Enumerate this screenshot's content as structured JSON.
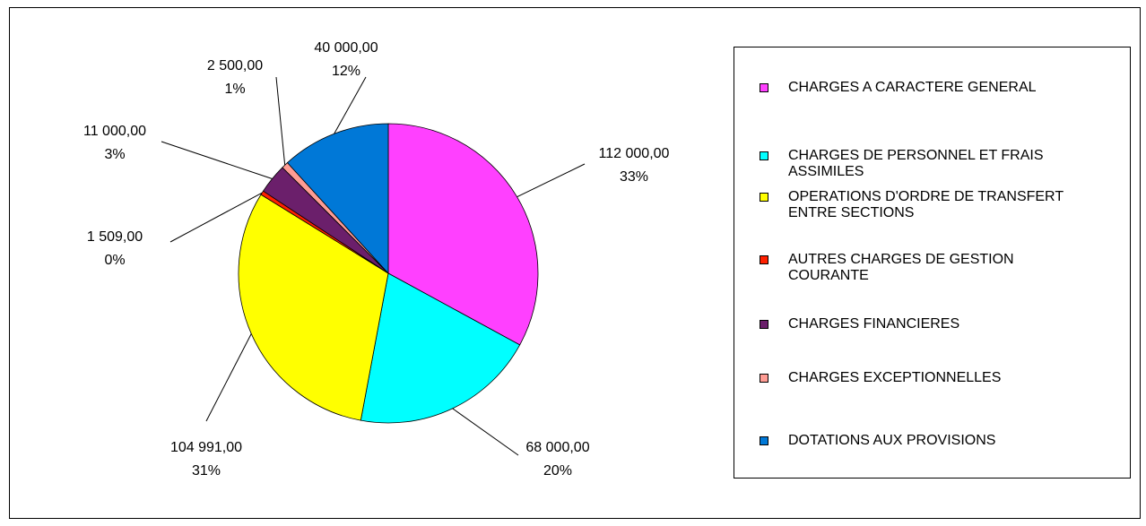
{
  "chart_data": {
    "type": "pie",
    "categories": [
      "CHARGES A CARACTERE GENERAL",
      "CHARGES DE PERSONNEL ET FRAIS ASSIMILES",
      "OPERATIONS D'ORDRE DE TRANSFERT ENTRE SECTIONS",
      "AUTRES CHARGES DE GESTION COURANTE",
      "CHARGES FINANCIERES",
      "CHARGES EXCEPTIONNELLES",
      "DOTATIONS AUX  PROVISIONS"
    ],
    "values": [
      112000,
      68000,
      104991,
      1509,
      11000,
      2500,
      40000
    ],
    "value_labels": [
      "112 000,00",
      "68 000,00",
      "104 991,00",
      "1 509,00",
      "11 000,00",
      "2 500,00",
      "40 000,00"
    ],
    "percent_labels": [
      "33%",
      "20%",
      "31%",
      "0%",
      "3%",
      "1%",
      "12%"
    ],
    "colors": [
      "#ff40ff",
      "#00ffff",
      "#ffff00",
      "#ff2000",
      "#6b1f6b",
      "#ff9c94",
      "#0078d7"
    ],
    "legend": "right"
  }
}
